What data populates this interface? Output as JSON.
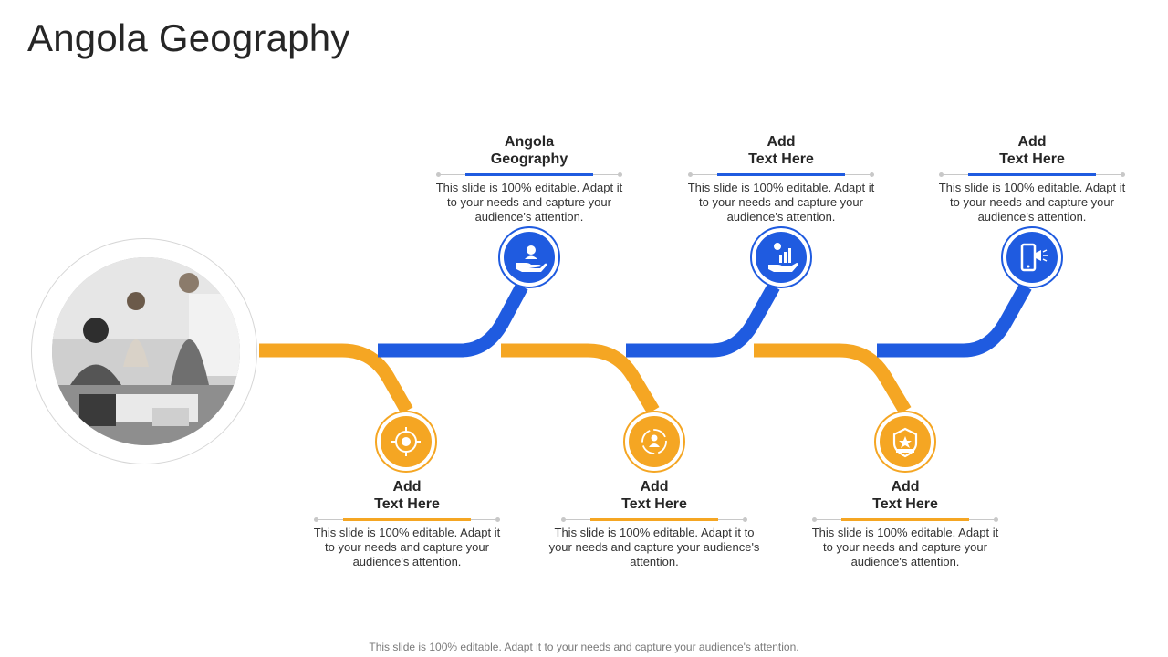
{
  "title": "Angola Geography",
  "footer": "This slide is 100% editable. Adapt it to your needs and capture your audience's attention.",
  "colors": {
    "blue": "#1f5be0",
    "orange": "#f5a623",
    "gray_rule": "#c8c8c8"
  },
  "steps": [
    {
      "title": "Angola\nGeography",
      "desc": "This slide is 100% editable. Adapt it to your needs and capture your audience's attention.",
      "icon": "hand-person-icon",
      "color": "blue"
    },
    {
      "title": "Add\nText Here",
      "desc": "This slide is 100% editable. Adapt it to your needs and capture your audience's attention.",
      "icon": "hand-chart-growth-icon",
      "color": "blue"
    },
    {
      "title": "Add\nText Here",
      "desc": "This slide is 100% editable. Adapt it to your needs and capture your audience's attention.",
      "icon": "mobile-megaphone-icon",
      "color": "blue"
    },
    {
      "title": "Add\nText Here",
      "desc": "This slide is 100% editable. Adapt it to your needs and capture your audience's attention.",
      "icon": "target-globe-icon",
      "color": "orange"
    },
    {
      "title": "Add\nText Here",
      "desc": "This slide is 100% editable. Adapt it to your needs and capture your audience's attention.",
      "icon": "cycle-person-icon",
      "color": "orange"
    },
    {
      "title": "Add\nText Here",
      "desc": "This slide is 100% editable. Adapt it to your needs and capture your audience's attention.",
      "icon": "award-badge-icon",
      "color": "orange"
    }
  ],
  "photo": {
    "icon": "team-meeting-photo"
  }
}
